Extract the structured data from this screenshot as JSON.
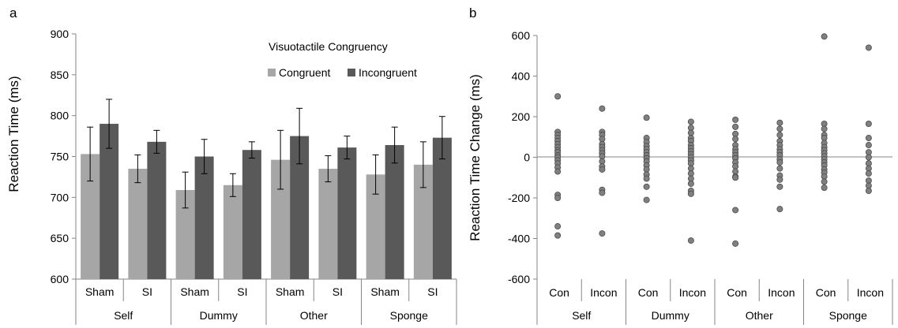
{
  "panels": {
    "a": "a",
    "b": "b"
  },
  "chart_data": [
    {
      "type": "bar",
      "panel": "a",
      "ylabel": "Reaction Time (ms)",
      "ylim": [
        600,
        900
      ],
      "yticks": [
        600,
        650,
        700,
        750,
        800,
        850,
        900
      ],
      "grid": false,
      "legend": {
        "title": "Visuotactile Congruency",
        "placement": "top-right"
      },
      "groups": [
        "Self",
        "Dummy",
        "Other",
        "Sponge"
      ],
      "categories": [
        "Sham",
        "SI",
        "Sham",
        "SI",
        "Sham",
        "SI",
        "Sham",
        "SI"
      ],
      "series": [
        {
          "name": "Congruent",
          "color": "#a6a6a6",
          "values": [
            753,
            735,
            709,
            715,
            746,
            735,
            728,
            740
          ],
          "errors": [
            33,
            17,
            22,
            14,
            36,
            16,
            24,
            28
          ]
        },
        {
          "name": "Incongruent",
          "color": "#595959",
          "values": [
            790,
            768,
            750,
            758,
            775,
            761,
            764,
            773
          ],
          "errors": [
            30,
            14,
            21,
            10,
            34,
            14,
            22,
            26
          ]
        }
      ]
    },
    {
      "type": "scatter",
      "panel": "b",
      "ylabel": "Reaction Time Change (ms)",
      "ylim": [
        -600,
        600
      ],
      "yticks": [
        -600,
        -400,
        -200,
        0,
        200,
        400,
        600
      ],
      "grid": false,
      "groups": [
        "Self",
        "Dummy",
        "Other",
        "Sponge"
      ],
      "categories": [
        "Con",
        "Incon",
        "Con",
        "Incon",
        "Con",
        "Incon",
        "Con",
        "Incon"
      ],
      "point_color": "#808080",
      "points": [
        [
          300,
          125,
          110,
          95,
          80,
          65,
          50,
          35,
          25,
          10,
          0,
          -15,
          -30,
          -50,
          -70,
          -185,
          -200,
          -340,
          -385
        ],
        [
          240,
          125,
          110,
          90,
          65,
          50,
          35,
          20,
          5,
          -20,
          -45,
          -60,
          -160,
          -175,
          -375
        ],
        [
          195,
          95,
          75,
          55,
          40,
          25,
          10,
          -5,
          -20,
          -40,
          -60,
          -85,
          -105,
          -145,
          -210
        ],
        [
          175,
          145,
          120,
          95,
          80,
          60,
          45,
          30,
          15,
          0,
          -15,
          -30,
          -55,
          -80,
          -105,
          -130,
          -165,
          -180,
          -410
        ],
        [
          185,
          150,
          115,
          90,
          60,
          40,
          25,
          10,
          -5,
          -25,
          -45,
          -70,
          -95,
          -100,
          -260,
          -425
        ],
        [
          170,
          140,
          110,
          80,
          60,
          40,
          25,
          10,
          -10,
          -25,
          -55,
          -90,
          -110,
          -145,
          -255
        ],
        [
          595,
          165,
          140,
          110,
          95,
          70,
          50,
          35,
          20,
          5,
          -10,
          -25,
          -40,
          -60,
          -75,
          -95,
          -120,
          -150
        ],
        [
          540,
          165,
          95,
          60,
          25,
          0,
          -30,
          -55,
          -80,
          -115,
          -140,
          -165
        ]
      ]
    }
  ]
}
